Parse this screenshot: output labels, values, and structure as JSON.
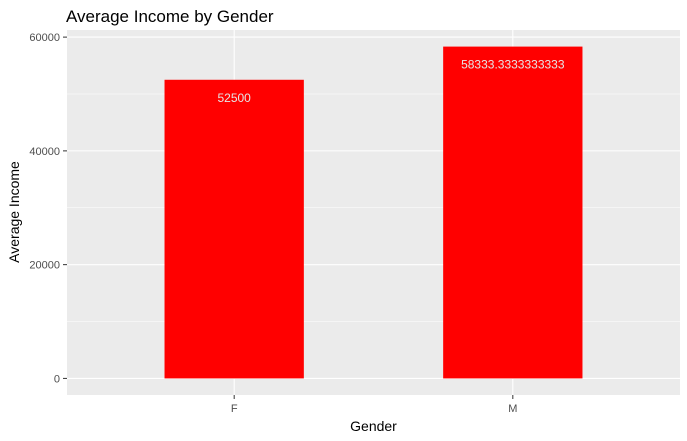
{
  "colors": {
    "panel_background": "#ebebeb",
    "grid_major": "#ffffff",
    "bar_fill": "#ff0000",
    "data_label": "#e6e6e6",
    "tick_label": "#4d4d4d"
  },
  "chart_data": {
    "type": "bar",
    "title": "Average Income by Gender",
    "xlabel": "Gender",
    "ylabel": "Average Income",
    "categories": [
      "F",
      "M"
    ],
    "values": [
      52500,
      58333.3333333333
    ],
    "data_labels": [
      "52500",
      "58333.3333333333"
    ],
    "ylim": [
      -2916.67,
      61250
    ],
    "yticks": [
      0,
      20000,
      40000,
      60000
    ],
    "ytick_labels": [
      "0",
      "20000",
      "40000",
      "60000"
    ],
    "grid": true,
    "legend": "none"
  }
}
